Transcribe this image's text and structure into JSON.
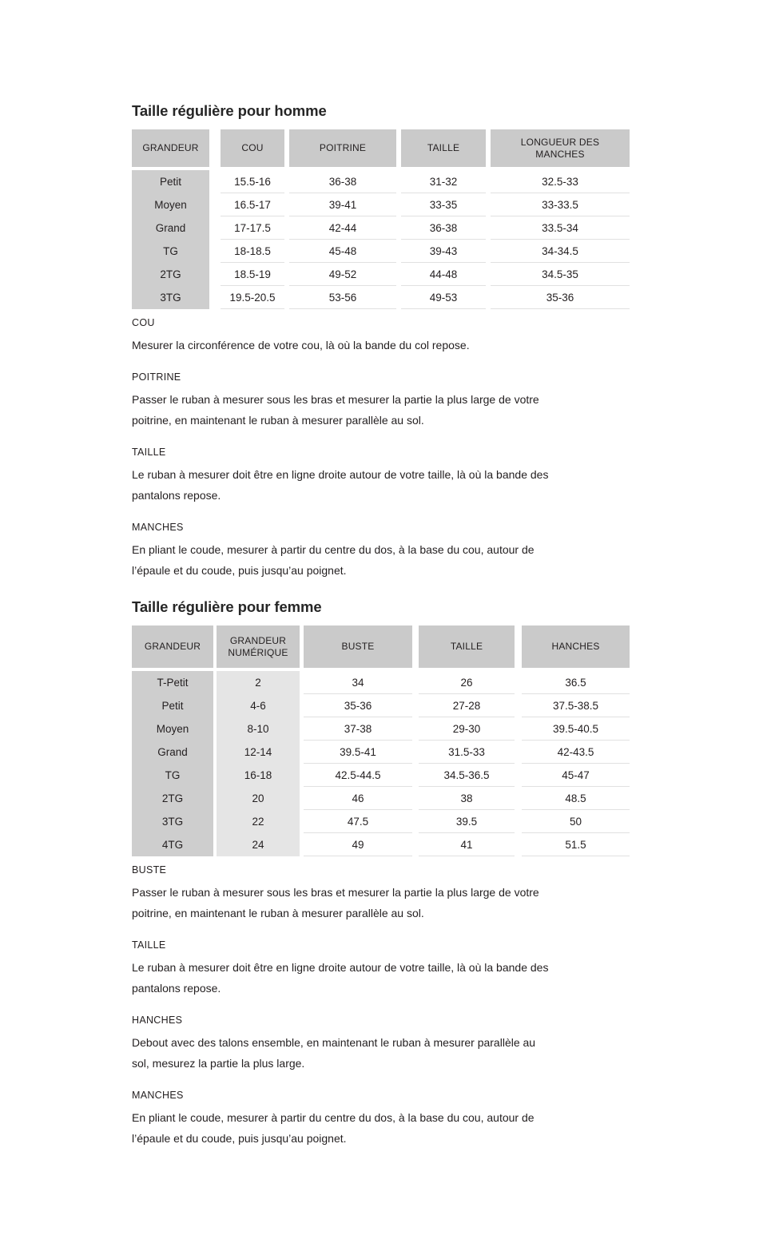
{
  "colors": {
    "table_header_bg": "#cacaca",
    "label_column_bg": "#cecece",
    "numeric_column_bg": "#e5e5e5",
    "row_separator": "#e1e1e1",
    "text": "#231f20",
    "page_bg": "#ffffff"
  },
  "men": {
    "title": "Taille régulière pour homme",
    "table": {
      "headers": [
        "GRANDEUR",
        "COU",
        "POITRINE",
        "TAILLE",
        "LONGUEUR DES MANCHES"
      ],
      "rows": [
        [
          "Petit",
          "15.5-16",
          "36-38",
          "31-32",
          "32.5-33"
        ],
        [
          "Moyen",
          "16.5-17",
          "39-41",
          "33-35",
          "33-33.5"
        ],
        [
          "Grand",
          "17-17.5",
          "42-44",
          "36-38",
          "33.5-34"
        ],
        [
          "TG",
          "18-18.5",
          "45-48",
          "39-43",
          "34-34.5"
        ],
        [
          "2TG",
          "18.5-19",
          "49-52",
          "44-48",
          "34.5-35"
        ],
        [
          "3TG",
          "19.5-20.5",
          "53-56",
          "49-53",
          "35-36"
        ]
      ]
    },
    "sections": [
      {
        "heading": "COU",
        "text": "Mesurer la circonférence de votre cou, là où la bande du col repose."
      },
      {
        "heading": "POITRINE",
        "text": "Passer le ruban à mesurer sous les bras et mesurer la partie la plus large de votre\npoitrine, en maintenant le ruban à mesurer parallèle au sol."
      },
      {
        "heading": "TAILLE",
        "text": "Le ruban à mesurer doit être en ligne droite autour de votre taille, là où la bande des\npantalons repose."
      },
      {
        "heading": "MANCHES",
        "text": "En pliant le coude, mesurer à partir du centre du dos, à la base du cou, autour de\nl’épaule et du coude, puis jusqu’au poignet."
      }
    ]
  },
  "women": {
    "title": "Taille régulière pour femme",
    "table": {
      "headers": [
        "GRANDEUR",
        "GRANDEUR NUMÉRIQUE",
        "BUSTE",
        "TAILLE",
        "HANCHES"
      ],
      "rows": [
        [
          "T-Petit",
          "2",
          "34",
          "26",
          "36.5"
        ],
        [
          "Petit",
          "4-6",
          "35-36",
          "27-28",
          "37.5-38.5"
        ],
        [
          "Moyen",
          "8-10",
          "37-38",
          "29-30",
          "39.5-40.5"
        ],
        [
          "Grand",
          "12-14",
          "39.5-41",
          "31.5-33",
          "42-43.5"
        ],
        [
          "TG",
          "16-18",
          "42.5-44.5",
          "34.5-36.5",
          "45-47"
        ],
        [
          "2TG",
          "20",
          "46",
          "38",
          "48.5"
        ],
        [
          "3TG",
          "22",
          "47.5",
          "39.5",
          "50"
        ],
        [
          "4TG",
          "24",
          "49",
          "41",
          "51.5"
        ]
      ]
    },
    "sections": [
      {
        "heading": "BUSTE",
        "text": "Passer le ruban à mesurer sous les bras et mesurer la partie la plus large de votre\npoitrine, en maintenant le ruban à mesurer parallèle au sol."
      },
      {
        "heading": "TAILLE",
        "text": "Le ruban à mesurer doit être en ligne droite autour de votre taille, là où la bande des\npantalons repose."
      },
      {
        "heading": "HANCHES",
        "text": "Debout avec des talons ensemble, en maintenant le ruban à mesurer parallèle au\nsol, mesurez la partie la plus large."
      },
      {
        "heading": "MANCHES",
        "text": "En pliant le coude, mesurer à partir du centre du dos, à la base du cou, autour de\nl’épaule et du coude, puis jusqu’au poignet."
      }
    ]
  }
}
